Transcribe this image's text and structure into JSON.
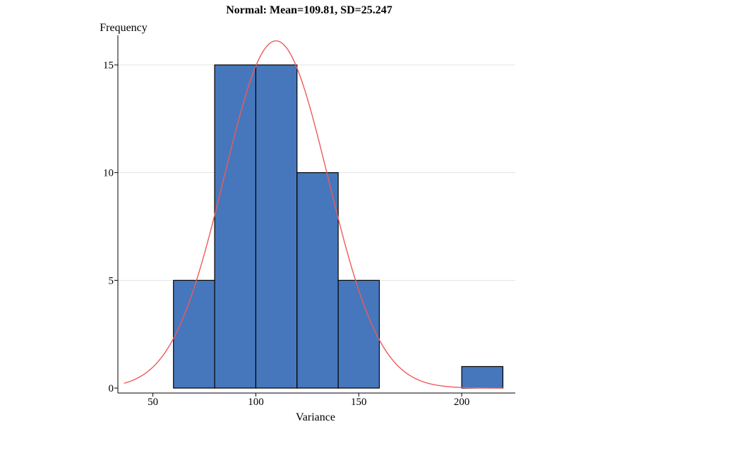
{
  "chart_data": {
    "type": "bar",
    "title": "Normal: Mean=109.81, SD=25.247",
    "xlabel": "Variance",
    "ylabel": "Frequency",
    "xlim": [
      33,
      226
    ],
    "ylim": [
      0,
      16.3
    ],
    "x_ticks": [
      50,
      100,
      150,
      200
    ],
    "y_ticks": [
      0,
      5,
      10,
      15
    ],
    "grid": true,
    "bins": [
      {
        "start": 60,
        "end": 80,
        "count": 5
      },
      {
        "start": 80,
        "end": 100,
        "count": 15
      },
      {
        "start": 100,
        "end": 120,
        "count": 15
      },
      {
        "start": 120,
        "end": 140,
        "count": 10
      },
      {
        "start": 140,
        "end": 160,
        "count": 5
      },
      {
        "start": 200,
        "end": 220,
        "count": 1
      }
    ],
    "normal_curve": {
      "mean": 109.81,
      "sd": 25.247,
      "n": 51,
      "bin_width": 20,
      "x_start": 36,
      "x_end": 220
    },
    "colors": {
      "bar_fill": "#4677BC",
      "bar_stroke": "#000000",
      "curve": "#EE5A5A",
      "grid": "#E3E3E3"
    }
  }
}
